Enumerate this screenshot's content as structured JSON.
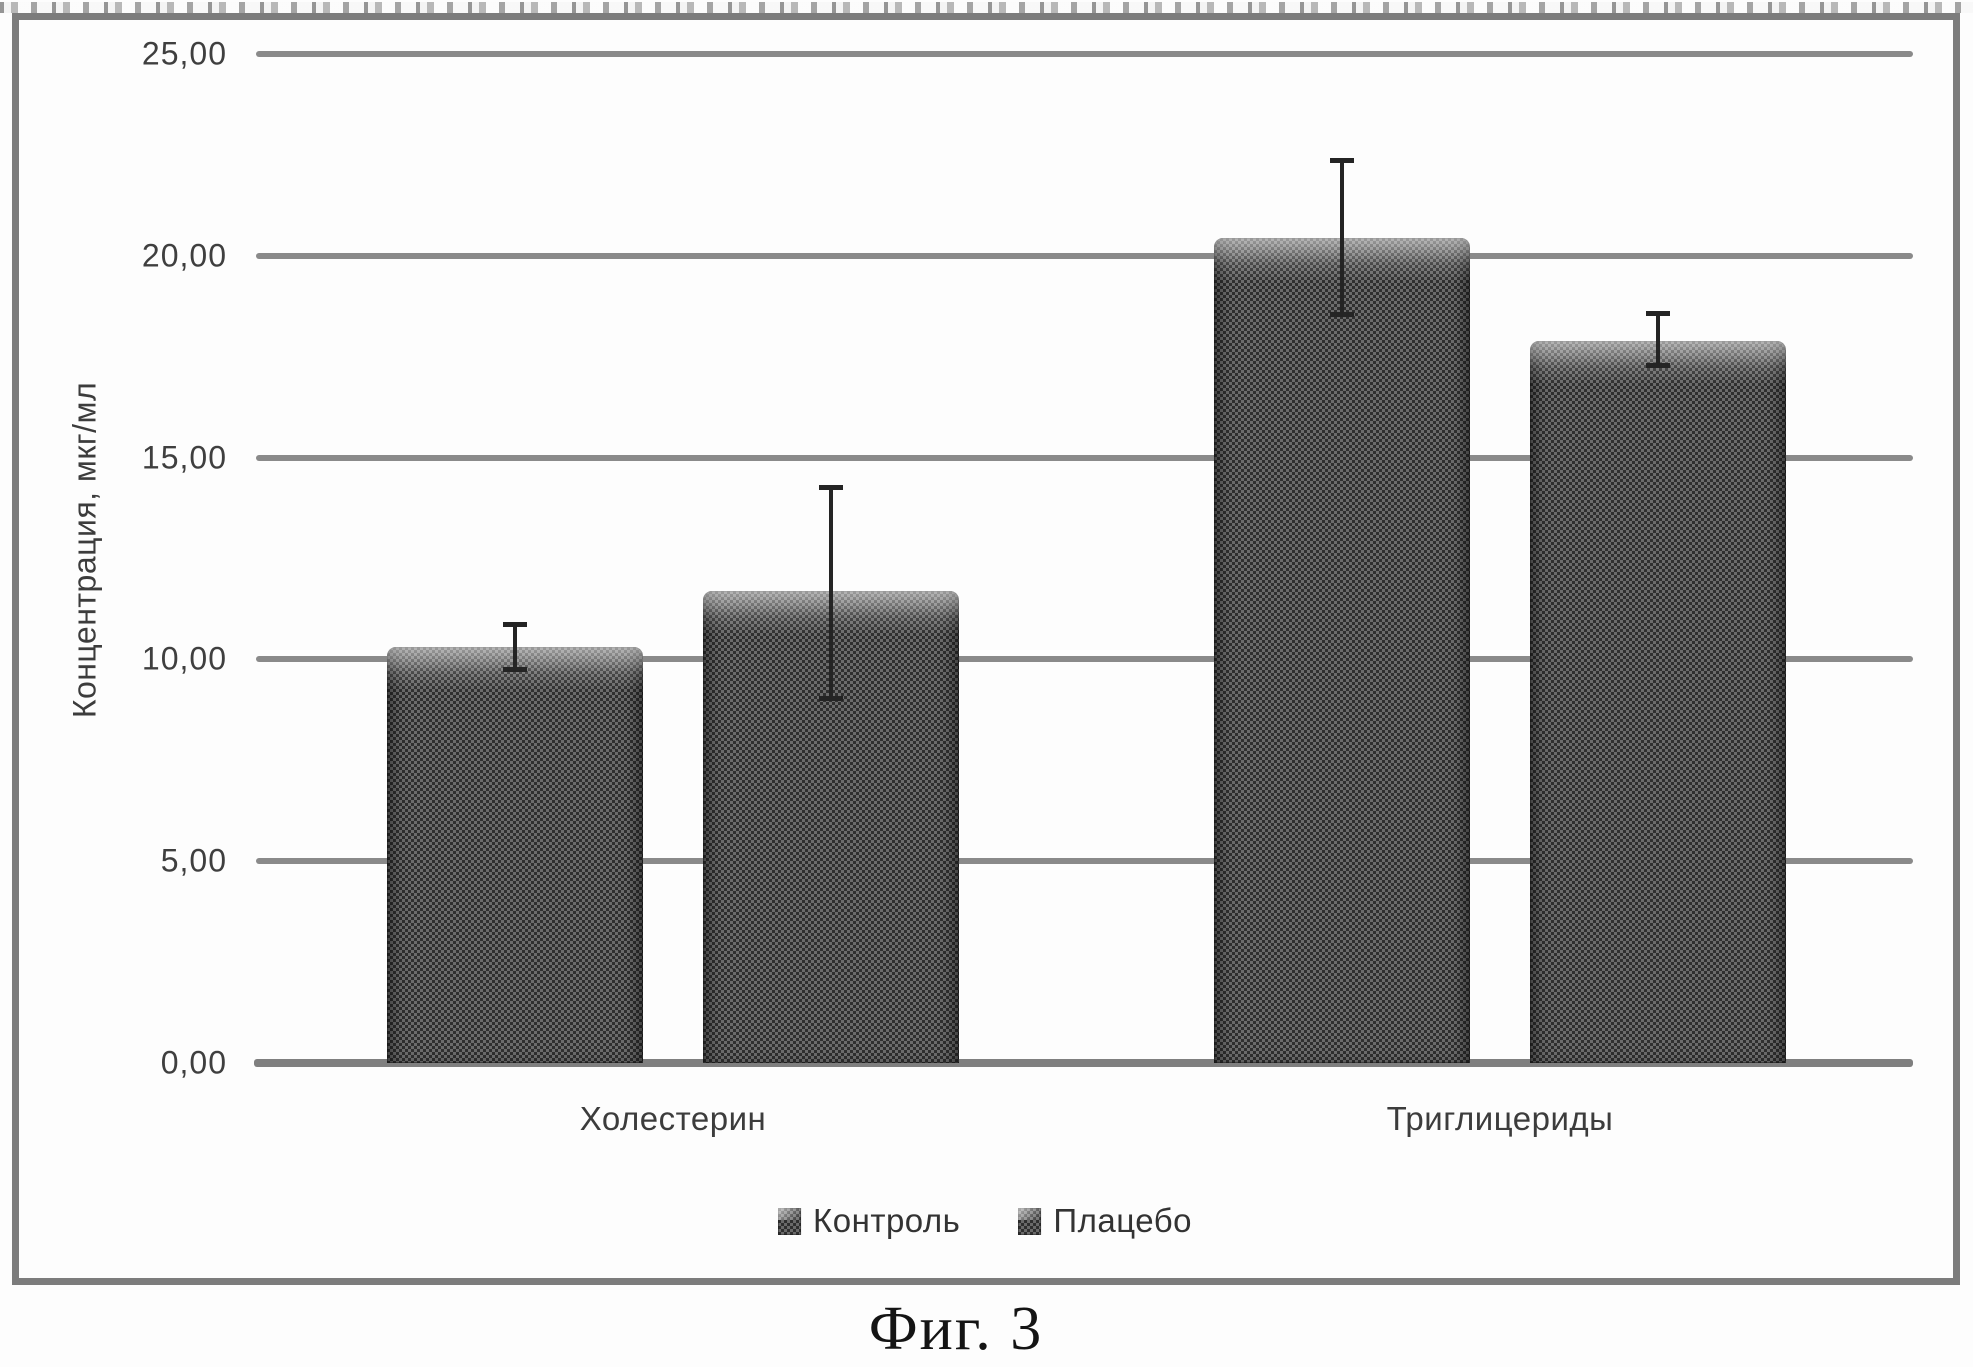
{
  "figure_caption": "Фиг. 3",
  "chart_data": {
    "type": "bar",
    "title": "",
    "xlabel": "",
    "ylabel": "Концентрация, мкг/мл",
    "ylim": [
      0,
      25
    ],
    "ytick_labels": [
      "0,00",
      "5,00",
      "10,00",
      "15,00",
      "20,00",
      "25,00"
    ],
    "ytick_values": [
      0,
      5,
      10,
      15,
      20,
      25
    ],
    "grid": true,
    "categories": [
      "Холестерин",
      "Триглицериды"
    ],
    "series": [
      {
        "name": "Контроль",
        "values": [
          10.3,
          20.45
        ],
        "error_low": [
          9.7,
          18.5
        ],
        "error_high": [
          10.9,
          22.4
        ]
      },
      {
        "name": "Плацебо",
        "values": [
          11.7,
          17.9
        ],
        "error_low": [
          9.0,
          17.25
        ],
        "error_high": [
          14.3,
          18.6
        ]
      }
    ],
    "legend": {
      "position": "bottom",
      "entries": [
        "Контроль",
        "Плацебо"
      ]
    },
    "bar_color": "#4c4c4c",
    "gridline_color": "#8a8a8a",
    "text_color": "#3f3f3f",
    "frame_color": "#7c7c7c"
  }
}
